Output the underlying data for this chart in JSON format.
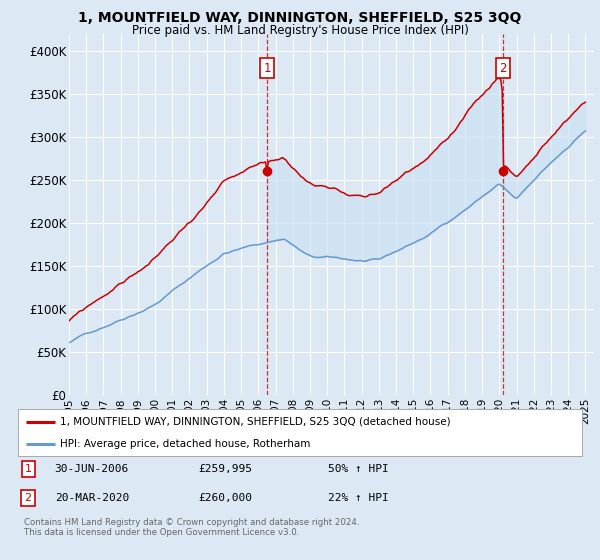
{
  "title": "1, MOUNTFIELD WAY, DINNINGTON, SHEFFIELD, S25 3QQ",
  "subtitle": "Price paid vs. HM Land Registry's House Price Index (HPI)",
  "background_color": "#dce9f5",
  "plot_bg_color": "#dce9f5",
  "grid_color": "#ffffff",
  "red_color": "#cc0000",
  "blue_color": "#6699cc",
  "ylim": [
    0,
    420000
  ],
  "yticks": [
    0,
    50000,
    100000,
    150000,
    200000,
    250000,
    300000,
    350000,
    400000
  ],
  "ytick_labels": [
    "£0",
    "£50K",
    "£100K",
    "£150K",
    "£200K",
    "£250K",
    "£300K",
    "£350K",
    "£400K"
  ],
  "sale1_date": 2006.5,
  "sale1_price": 259995,
  "sale2_date": 2020.21,
  "sale2_price": 260000,
  "legend_line1": "1, MOUNTFIELD WAY, DINNINGTON, SHEFFIELD, S25 3QQ (detached house)",
  "legend_line2": "HPI: Average price, detached house, Rotherham",
  "table_data": [
    [
      "1",
      "30-JUN-2006",
      "£259,995",
      "50% ↑ HPI"
    ],
    [
      "2",
      "20-MAR-2020",
      "£260,000",
      "22% ↑ HPI"
    ]
  ],
  "footnote": "Contains HM Land Registry data © Crown copyright and database right 2024.\nThis data is licensed under the Open Government Licence v3.0.",
  "xmin": 1995,
  "xmax": 2025.5,
  "shade_color": "#c8dff0"
}
